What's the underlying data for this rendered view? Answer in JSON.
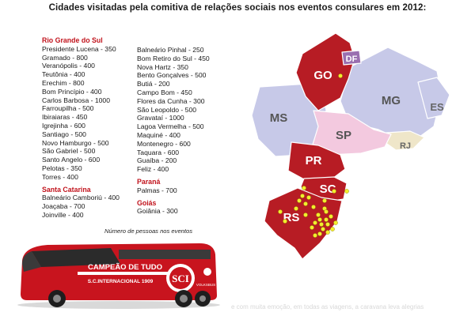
{
  "title": "Cidades visitadas pela comitiva de relações sociais nos eventos consulares em 2012:",
  "rio_grande_do_sul": {
    "heading": "Rio Grande do Sul",
    "col1": [
      "Presidente Lucena - 350",
      "Gramado - 800",
      "Veranópolis - 400",
      "Teutônia - 400",
      "Erechim - 800",
      "Bom Princípio - 400",
      "Carlos Barbosa - 1000",
      "Farroupilha - 500",
      "Ibiraiaras - 450",
      "Igrejinha - 600",
      "Santiago - 500",
      "Novo Hamburgo - 500",
      "São Gabriel - 500",
      "Santo Angelo - 600",
      "Pelotas - 350",
      "Torres - 400"
    ],
    "col2": [
      "Balneário Pinhal - 250",
      "Bom Retiro do Sul - 450",
      "Nova Hartz - 350",
      "Bento Gonçalves - 500",
      "Butiá - 200",
      "Campo Bom - 450",
      "Flores da Cunha - 300",
      "São Leopoldo - 500",
      "Gravataí - 1000",
      "Lagoa Vermelha - 500",
      "Maquiné - 400",
      "Montenegro - 600",
      "Taquara - 600",
      "Guaíba - 200",
      "Feliz - 400"
    ]
  },
  "santa_catarina": {
    "heading": "Santa Catarina",
    "items": [
      "Balneário Camboriú - 400",
      "Joaçaba - 700",
      "Joinville - 400"
    ]
  },
  "parana": {
    "heading": "Paraná",
    "items": [
      "Palmas - 700"
    ]
  },
  "goias": {
    "heading": "Goiás",
    "items": [
      "Goiânia - 300"
    ]
  },
  "caption": "Número de pessoas nos eventos",
  "bus": {
    "banner": "CAMPEÃO DE TUDO",
    "club": "S.C.INTERNACIONAL 1909",
    "brand": "VOLKSBUS"
  },
  "map": {
    "colors": {
      "highlight": "#b71c24",
      "dot": "#f2ee2e",
      "MS": "#c7c9e8",
      "MG": "#c7c9e8",
      "SP": "#f3c9df",
      "ES": "#c7c9e8",
      "DF": "#9a6fb0",
      "RJ": "#efe6c9"
    },
    "labels": {
      "GO": "GO",
      "DF": "DF",
      "MG": "MG",
      "ES": "ES",
      "MS": "MS",
      "SP": "SP",
      "RJ": "RJ",
      "PR": "PR",
      "SC": "SC",
      "RS": "RS"
    }
  },
  "faded_text": "e com muita emoção, em todas as viagens, a caravana leva alegrias"
}
